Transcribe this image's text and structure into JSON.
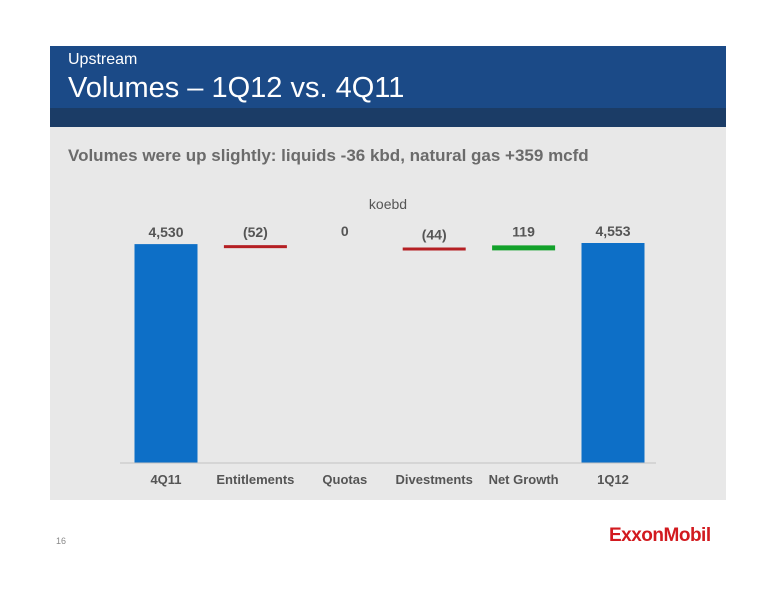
{
  "header": {
    "kicker": "Upstream",
    "title": "Volumes – 1Q12 vs. 4Q11"
  },
  "subtitle": "Volumes were up slightly: liquids -36 kbd, natural gas +359 mcfd",
  "page_number": "16",
  "logo_text": "ExxonMobil",
  "colors": {
    "header": "#1b4a87",
    "total_bar": "#0d6fc7",
    "decrease": "#b51f23",
    "increase": "#12a12a",
    "panel": "#e8e8e8"
  },
  "chart_data": {
    "type": "bar",
    "subtype": "waterfall",
    "unit": "koebd",
    "categories": [
      "4Q11",
      "Entitlements",
      "Quotas",
      "Divestments",
      "Net Growth",
      "1Q12"
    ],
    "values": [
      4530,
      -52,
      0,
      -44,
      119,
      4553
    ],
    "value_labels": [
      "4,530",
      "(52)",
      "0",
      "(44)",
      "119",
      "4,553"
    ],
    "kinds": [
      "total",
      "change",
      "change",
      "change",
      "change",
      "total"
    ],
    "ylim": [
      0,
      4600
    ],
    "grid": false,
    "legend": "none"
  }
}
